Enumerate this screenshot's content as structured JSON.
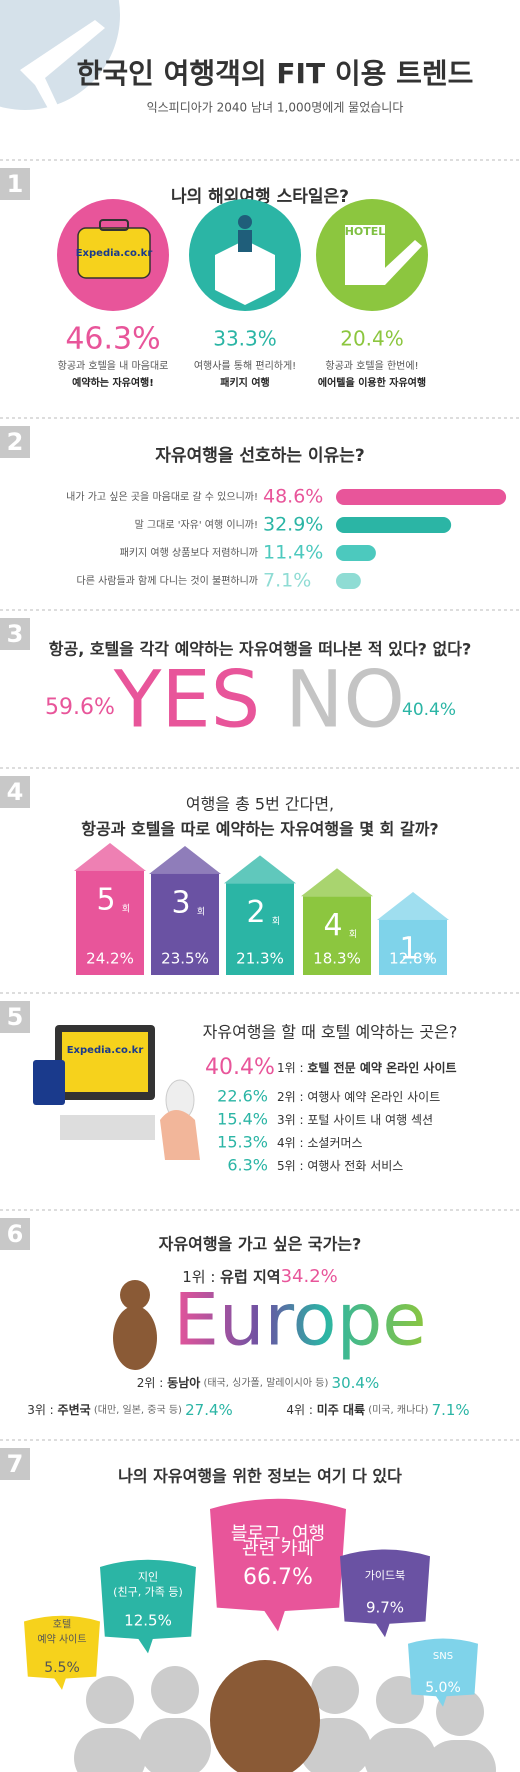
{
  "header": {
    "title": "한국인 여행객의 FIT 이용 트렌드",
    "subtitle": "익스피디아가 2040 남녀 1,000명에게 물었습니다"
  },
  "style": {
    "number": "1",
    "question": "나의 해외여행 스타일은?",
    "icon_brand": "Expedia.co.kr",
    "icon_hotel": "HOTEL",
    "items": [
      {
        "value_label": "46.3%",
        "lines": [
          "항공과 호텔을 내 마음대로",
          "예약하는 자유여행!"
        ]
      },
      {
        "value_label": "33.3%",
        "lines": [
          "여행사를 통해 편리하게!",
          "패키지 여행"
        ]
      },
      {
        "value_label": "20.4%",
        "lines": [
          "항공과 호텔을 한번에!",
          "에어텔을 이용한 자유여행"
        ]
      }
    ]
  },
  "reasons": {
    "number": "2",
    "question": "자유여행을 선호하는 이유는?",
    "items": [
      {
        "label": "내가 가고 싶은 곳을 마음대로 갈 수 있으니까!",
        "value": 48.6,
        "value_label": "48.6%",
        "color": "#e8559a"
      },
      {
        "label": "말 그대로 '자유' 여행 이니까!",
        "value": 32.9,
        "value_label": "32.9%",
        "color": "#2bb5a5"
      },
      {
        "label": "패키지 여행 상품보다 저렴하니까",
        "value": 11.4,
        "value_label": "11.4%",
        "color": "#4cc9be"
      },
      {
        "label": "다른 사람들과 함께 다니는 것이 불편하니까",
        "value": 7.1,
        "value_label": "7.1%",
        "color": "#8fdcd4"
      }
    ]
  },
  "experience": {
    "number": "3",
    "question": "항공, 호텔을 각각 예약하는 자유여행을 떠나본 적 있다? 없다?",
    "yes": {
      "word": "YES",
      "value_label": "59.6%"
    },
    "no": {
      "word": "NO",
      "value_label": "40.4%"
    }
  },
  "frequency": {
    "number": "4",
    "question": [
      "여행을 총 5번 간다면,",
      "항공과 호텔을 따로 예약하는 자유여행을 몇 회 갈까?"
    ],
    "unit": "회",
    "items": [
      {
        "count": 5,
        "value": 24.2,
        "value_label": "24.2%",
        "color": "#e8559a"
      },
      {
        "count": 3,
        "value": 23.5,
        "value_label": "23.5%",
        "color": "#6a52a3"
      },
      {
        "count": 2,
        "value": 21.3,
        "value_label": "21.3%",
        "color": "#2bb5a5"
      },
      {
        "count": 4,
        "value": 18.3,
        "value_label": "18.3%",
        "color": "#8cc63f"
      },
      {
        "count": 1,
        "value": 12.8,
        "value_label": "12.8%",
        "color": "#7fd3ea"
      }
    ]
  },
  "hotel": {
    "number": "5",
    "question": "자유여행을 할 때 호텔 예약하는 곳은?",
    "screen_brand": "Expedia.co.kr",
    "items": [
      {
        "value_label": "40.4%",
        "rank": "1위 : ",
        "text": "호텔 전문 예약 온라인 사이트"
      },
      {
        "value_label": "22.6%",
        "rank": "2위 : ",
        "text": "여행사 예약 온라인 사이트"
      },
      {
        "value_label": "15.4%",
        "rank": "3위 : ",
        "text": "포털 사이트 내 여행 섹션"
      },
      {
        "value_label": "15.3%",
        "rank": "4위 : ",
        "text": "소셜커머스"
      },
      {
        "value_label": "6.3%",
        "rank": "5위 : ",
        "text": "여행사 전화 서비스"
      }
    ]
  },
  "destination": {
    "number": "6",
    "question": "자유여행을 가고 싶은 국가는?",
    "first": {
      "rank": "1위 : ",
      "name": "유럽 지역",
      "value_label": "34.2%",
      "word": "Europe"
    },
    "others": [
      {
        "rank": "2위 : ",
        "name": "동남아",
        "detail": " (태국, 싱가폴, 말레이시아 등) ",
        "value_label": "30.4%"
      },
      {
        "rank": "3위 : ",
        "name": "주변국",
        "detail": " (대만, 일본, 중국 등) ",
        "value_label": "27.4%"
      },
      {
        "rank": "4위 : ",
        "name": "미주 대륙",
        "detail": " (미국, 캐나다) ",
        "value_label": "7.1%"
      }
    ]
  },
  "info": {
    "number": "7",
    "question": "나의 자유여행을 위한 정보는 여기 다 있다",
    "bubbles": [
      {
        "lines": [
          "블로그, 여행",
          "관련 카페"
        ],
        "value_label": "66.7%"
      },
      {
        "lines": [
          "지인",
          "(친구, 가족 등)"
        ],
        "value_label": "12.5%"
      },
      {
        "lines": [
          "가이드북"
        ],
        "value_label": "9.7%"
      },
      {
        "lines": [
          "호텔",
          "예약 사이트"
        ],
        "value_label": "5.5%"
      },
      {
        "lines": [
          "SNS"
        ],
        "value_label": "5.0%"
      }
    ]
  }
}
